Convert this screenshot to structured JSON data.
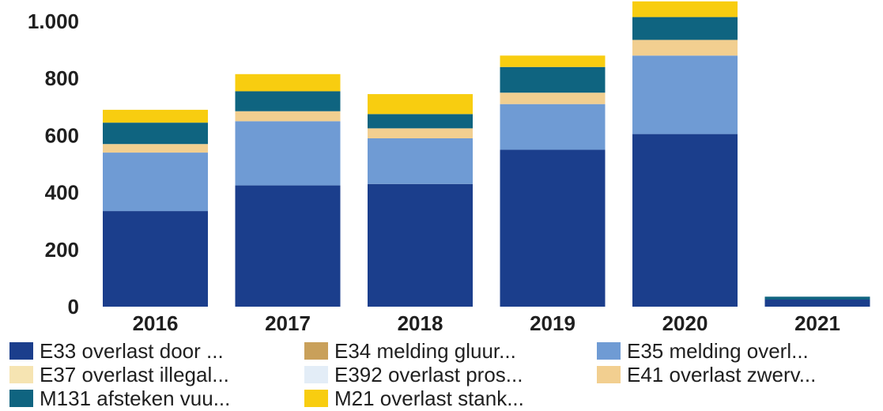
{
  "chart_data": {
    "type": "bar",
    "stacked": true,
    "categories": [
      "2016",
      "2017",
      "2018",
      "2019",
      "2020",
      "2021"
    ],
    "ylim": [
      0,
      1000
    ],
    "yticks": [
      0,
      200,
      400,
      600,
      800,
      1000
    ],
    "ytick_labels": [
      "0",
      "200",
      "400",
      "600",
      "800",
      "1.000"
    ],
    "grid": false,
    "legend_position": "bottom",
    "series": [
      {
        "name": "E33 overlast door ...",
        "color": "#1b3e8c",
        "values": [
          335,
          425,
          430,
          550,
          605,
          25
        ]
      },
      {
        "name": "E34 melding gluur...",
        "color": "#c9a05a",
        "values": [
          0,
          0,
          0,
          0,
          0,
          0
        ]
      },
      {
        "name": "E35 melding overl...",
        "color": "#6f9bd4",
        "values": [
          205,
          225,
          160,
          160,
          275,
          0
        ]
      },
      {
        "name": "E37 overlast illegal...",
        "color": "#f6e4b2",
        "values": [
          0,
          0,
          0,
          0,
          0,
          0
        ]
      },
      {
        "name": "E392 overlast pros...",
        "color": "#e3edf7",
        "values": [
          0,
          0,
          0,
          0,
          0,
          0
        ]
      },
      {
        "name": "E41 overlast zwerv...",
        "color": "#f2cf90",
        "values": [
          30,
          35,
          35,
          40,
          55,
          0
        ]
      },
      {
        "name": "M131 afsteken vuu...",
        "color": "#0f6480",
        "values": [
          75,
          70,
          50,
          90,
          80,
          10
        ]
      },
      {
        "name": "M21 overlast stank...",
        "color": "#f8cd10",
        "values": [
          45,
          60,
          70,
          40,
          55,
          0
        ]
      }
    ]
  }
}
